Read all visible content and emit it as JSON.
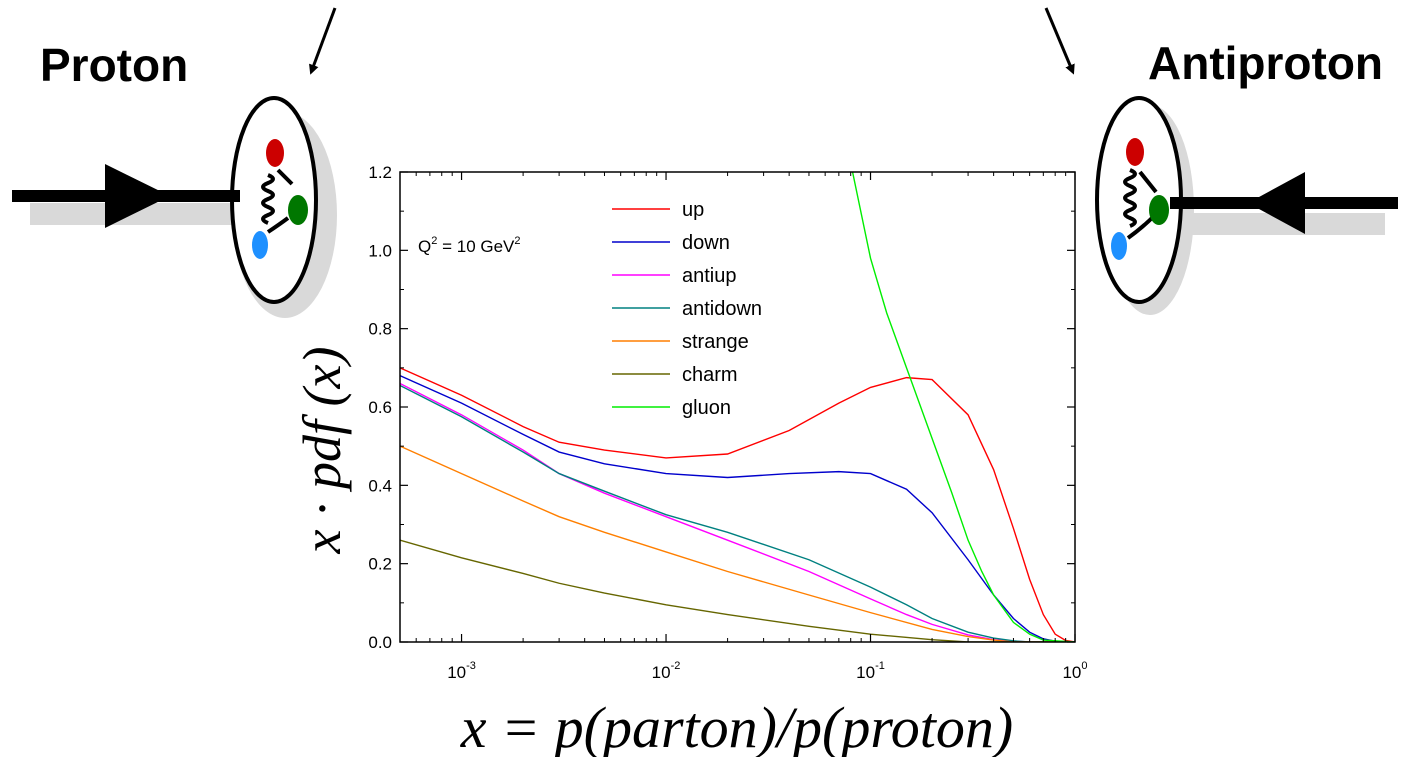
{
  "labels": {
    "proton": "Proton",
    "antiproton": "Antiproton"
  },
  "chart_data": {
    "type": "line",
    "xlabel": "x = p(parton)/p(proton)",
    "ylabel": "x · pdf (x)",
    "annotation": {
      "q_sym": "Q",
      "q_exp": "2",
      "eq_text": " = 10 GeV",
      "unit_exp": "2"
    },
    "x_scale": "log",
    "xlim": [
      0.0005,
      1
    ],
    "ylim": [
      0,
      1.2
    ],
    "x_ticks": [
      {
        "value": 0.001,
        "base": "10",
        "exp": "-3"
      },
      {
        "value": 0.01,
        "base": "10",
        "exp": "-2"
      },
      {
        "value": 0.1,
        "base": "10",
        "exp": "-1"
      },
      {
        "value": 1,
        "base": "10",
        "exp": "0"
      }
    ],
    "y_ticks": [
      "0.0",
      "0.2",
      "0.4",
      "0.6",
      "0.8",
      "1.0",
      "1.2"
    ],
    "y_tick_values": [
      0,
      0.2,
      0.4,
      0.6,
      0.8,
      1.0,
      1.2
    ],
    "legend_position": "top-center",
    "series": [
      {
        "name": "up",
        "color": "#ff0000",
        "points": [
          [
            0.0005,
            0.7
          ],
          [
            0.001,
            0.63
          ],
          [
            0.002,
            0.55
          ],
          [
            0.003,
            0.51
          ],
          [
            0.005,
            0.49
          ],
          [
            0.01,
            0.47
          ],
          [
            0.02,
            0.48
          ],
          [
            0.04,
            0.54
          ],
          [
            0.07,
            0.61
          ],
          [
            0.1,
            0.65
          ],
          [
            0.15,
            0.675
          ],
          [
            0.2,
            0.67
          ],
          [
            0.3,
            0.58
          ],
          [
            0.4,
            0.44
          ],
          [
            0.5,
            0.29
          ],
          [
            0.6,
            0.16
          ],
          [
            0.7,
            0.07
          ],
          [
            0.8,
            0.02
          ],
          [
            0.9,
            0.004
          ],
          [
            1,
            0.0
          ]
        ]
      },
      {
        "name": "down",
        "color": "#0000cc",
        "points": [
          [
            0.0005,
            0.68
          ],
          [
            0.001,
            0.61
          ],
          [
            0.002,
            0.53
          ],
          [
            0.003,
            0.485
          ],
          [
            0.005,
            0.455
          ],
          [
            0.01,
            0.43
          ],
          [
            0.02,
            0.42
          ],
          [
            0.04,
            0.43
          ],
          [
            0.07,
            0.435
          ],
          [
            0.1,
            0.43
          ],
          [
            0.15,
            0.39
          ],
          [
            0.2,
            0.33
          ],
          [
            0.3,
            0.21
          ],
          [
            0.4,
            0.12
          ],
          [
            0.5,
            0.06
          ],
          [
            0.6,
            0.025
          ],
          [
            0.7,
            0.008
          ],
          [
            0.8,
            0.002
          ],
          [
            1,
            0.0
          ]
        ]
      },
      {
        "name": "antiup",
        "color": "#ff00ff",
        "points": [
          [
            0.0005,
            0.66
          ],
          [
            0.001,
            0.58
          ],
          [
            0.002,
            0.49
          ],
          [
            0.003,
            0.43
          ],
          [
            0.005,
            0.38
          ],
          [
            0.01,
            0.32
          ],
          [
            0.02,
            0.26
          ],
          [
            0.05,
            0.18
          ],
          [
            0.1,
            0.11
          ],
          [
            0.15,
            0.07
          ],
          [
            0.2,
            0.045
          ],
          [
            0.3,
            0.018
          ],
          [
            0.4,
            0.006
          ],
          [
            0.5,
            0.002
          ],
          [
            0.6,
            0.0
          ],
          [
            1,
            0.0
          ]
        ]
      },
      {
        "name": "antidown",
        "color": "#008080",
        "points": [
          [
            0.0005,
            0.655
          ],
          [
            0.001,
            0.575
          ],
          [
            0.002,
            0.485
          ],
          [
            0.003,
            0.43
          ],
          [
            0.005,
            0.385
          ],
          [
            0.01,
            0.325
          ],
          [
            0.02,
            0.28
          ],
          [
            0.05,
            0.21
          ],
          [
            0.1,
            0.14
          ],
          [
            0.15,
            0.095
          ],
          [
            0.2,
            0.06
          ],
          [
            0.3,
            0.025
          ],
          [
            0.4,
            0.01
          ],
          [
            0.5,
            0.003
          ],
          [
            0.6,
            0.0
          ],
          [
            1,
            0.0
          ]
        ]
      },
      {
        "name": "strange",
        "color": "#ff7f00",
        "points": [
          [
            0.0005,
            0.5
          ],
          [
            0.001,
            0.43
          ],
          [
            0.002,
            0.36
          ],
          [
            0.003,
            0.32
          ],
          [
            0.005,
            0.28
          ],
          [
            0.01,
            0.23
          ],
          [
            0.02,
            0.18
          ],
          [
            0.05,
            0.12
          ],
          [
            0.1,
            0.075
          ],
          [
            0.2,
            0.032
          ],
          [
            0.3,
            0.014
          ],
          [
            0.4,
            0.005
          ],
          [
            0.5,
            0.0
          ],
          [
            1,
            0.0
          ]
        ]
      },
      {
        "name": "charm",
        "color": "#666600",
        "points": [
          [
            0.0005,
            0.26
          ],
          [
            0.001,
            0.215
          ],
          [
            0.002,
            0.175
          ],
          [
            0.003,
            0.15
          ],
          [
            0.005,
            0.125
          ],
          [
            0.01,
            0.095
          ],
          [
            0.02,
            0.07
          ],
          [
            0.05,
            0.04
          ],
          [
            0.1,
            0.02
          ],
          [
            0.2,
            0.006
          ],
          [
            0.3,
            0.0
          ],
          [
            1,
            0.0
          ]
        ]
      },
      {
        "name": "gluon",
        "color": "#00ee00",
        "points": [
          [
            0.0817,
            1.2
          ],
          [
            0.1,
            0.98
          ],
          [
            0.12,
            0.84
          ],
          [
            0.15,
            0.7
          ],
          [
            0.2,
            0.52
          ],
          [
            0.25,
            0.38
          ],
          [
            0.3,
            0.26
          ],
          [
            0.35,
            0.18
          ],
          [
            0.4,
            0.12
          ],
          [
            0.5,
            0.05
          ],
          [
            0.6,
            0.02
          ],
          [
            0.7,
            0.005
          ],
          [
            1,
            0.0
          ]
        ]
      }
    ]
  }
}
